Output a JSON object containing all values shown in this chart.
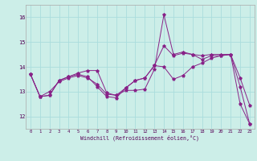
{
  "xlabel": "Windchill (Refroidissement éolien,°C)",
  "background_color": "#cceee8",
  "grid_color": "#aadddd",
  "line_color": "#882288",
  "xlim_min": -0.5,
  "xlim_max": 23.5,
  "ylim_min": 11.5,
  "ylim_max": 16.5,
  "yticks": [
    12,
    13,
    14,
    15,
    16
  ],
  "xticks": [
    0,
    1,
    2,
    3,
    4,
    5,
    6,
    7,
    8,
    9,
    10,
    11,
    12,
    13,
    14,
    15,
    16,
    17,
    18,
    19,
    20,
    21,
    22,
    23
  ],
  "line1_y": [
    13.7,
    12.8,
    12.85,
    13.45,
    13.6,
    13.75,
    13.85,
    13.85,
    12.95,
    12.85,
    13.05,
    13.05,
    13.1,
    13.9,
    16.1,
    14.5,
    14.6,
    14.5,
    14.3,
    14.45,
    14.45,
    14.5,
    13.2,
    11.7
  ],
  "line2_y": [
    13.7,
    12.8,
    13.0,
    13.4,
    13.55,
    13.65,
    13.55,
    13.3,
    12.9,
    12.85,
    13.15,
    13.45,
    13.55,
    14.05,
    14.85,
    14.45,
    14.55,
    14.5,
    14.45,
    14.5,
    14.5,
    14.5,
    13.55,
    12.45
  ],
  "line3_y": [
    13.7,
    12.8,
    12.85,
    13.45,
    13.6,
    13.7,
    13.6,
    13.2,
    12.8,
    12.75,
    13.15,
    13.45,
    13.55,
    14.05,
    14.0,
    13.5,
    13.65,
    14.0,
    14.15,
    14.35,
    14.45,
    14.5,
    12.5,
    11.7
  ]
}
